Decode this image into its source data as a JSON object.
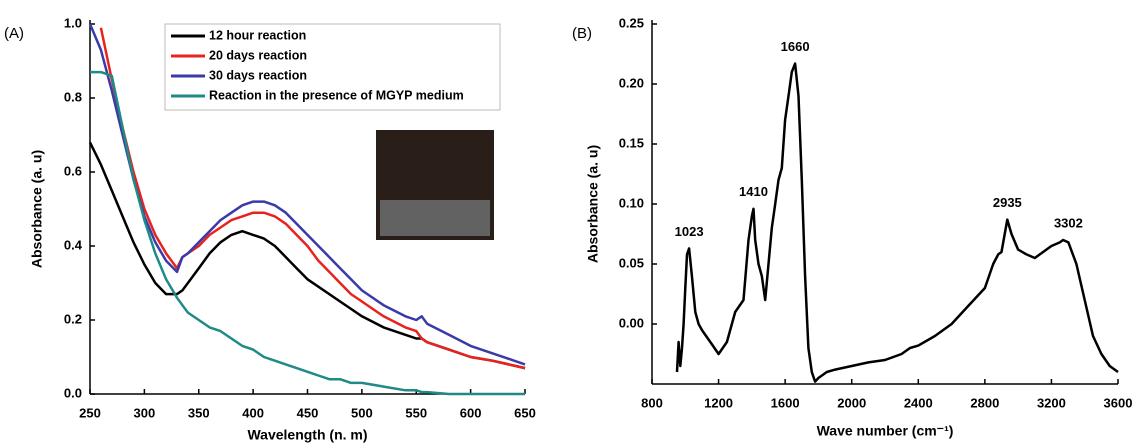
{
  "chart_data": [
    {
      "type": "line",
      "panel_label": "(A)",
      "x_label": "Wavelength (n. m)",
      "y_label": "Absorbance (a. u)",
      "xlim": [
        250,
        650
      ],
      "xticks": [
        250,
        300,
        350,
        400,
        450,
        500,
        550,
        600,
        650
      ],
      "ylim": [
        0,
        1
      ],
      "yticks": [
        {
          "value": 0,
          "label": "0.0"
        },
        0.2,
        0.4,
        0.6,
        0.8,
        {
          "value": 1,
          "label": "1.0"
        }
      ],
      "x": [
        250,
        260,
        270,
        280,
        290,
        300,
        310,
        320,
        330,
        335,
        340,
        350,
        360,
        370,
        380,
        390,
        400,
        410,
        420,
        430,
        440,
        450,
        460,
        470,
        480,
        490,
        500,
        520,
        540,
        550,
        555,
        560,
        580,
        600,
        620,
        650
      ],
      "series": [
        {
          "name": "12 hour reaction",
          "color": "#000000",
          "values": [
            0.68,
            0.62,
            0.55,
            0.48,
            0.41,
            0.35,
            0.3,
            0.27,
            0.27,
            0.28,
            0.3,
            0.34,
            0.38,
            0.41,
            0.43,
            0.44,
            0.43,
            0.42,
            0.4,
            0.37,
            0.34,
            0.31,
            0.29,
            0.27,
            0.25,
            0.23,
            0.21,
            0.18,
            0.16,
            0.15,
            0.15,
            0.14,
            0.12,
            0.1,
            0.09,
            0.07
          ]
        },
        {
          "name": "20 days reaction",
          "color": "#e8231f",
          "values": [
            null,
            0.99,
            0.85,
            0.72,
            0.6,
            0.5,
            0.43,
            0.38,
            0.34,
            0.37,
            0.38,
            0.4,
            0.43,
            0.45,
            0.47,
            0.48,
            0.49,
            0.49,
            0.48,
            0.46,
            0.43,
            0.4,
            0.36,
            0.33,
            0.3,
            0.27,
            0.25,
            0.21,
            0.18,
            0.17,
            0.15,
            0.14,
            0.12,
            0.1,
            0.09,
            0.07
          ]
        },
        {
          "name": "30 days reaction",
          "color": "#3a3aa8",
          "values": [
            1.0,
            0.93,
            0.82,
            0.7,
            0.58,
            0.48,
            0.41,
            0.36,
            0.33,
            0.37,
            0.38,
            0.41,
            0.44,
            0.47,
            0.49,
            0.51,
            0.52,
            0.52,
            0.51,
            0.49,
            0.46,
            0.43,
            0.4,
            0.37,
            0.34,
            0.31,
            0.28,
            0.24,
            0.21,
            0.2,
            0.21,
            0.19,
            0.16,
            0.13,
            0.11,
            0.08
          ]
        },
        {
          "name": "Reaction in the presence of MGYP medium",
          "color": "#1f8a86",
          "values": [
            0.87,
            0.87,
            0.86,
            0.72,
            0.58,
            0.47,
            0.38,
            0.31,
            0.26,
            0.24,
            0.22,
            0.2,
            0.18,
            0.17,
            0.15,
            0.13,
            0.12,
            0.1,
            0.09,
            0.08,
            0.07,
            0.06,
            0.05,
            0.04,
            0.04,
            0.03,
            0.03,
            0.02,
            0.01,
            0.01,
            0.005,
            0.005,
            0,
            0,
            0,
            0
          ]
        }
      ]
    },
    {
      "type": "line",
      "panel_label": "(B)",
      "x_label": "Wave number (cm⁻¹)",
      "y_label": "Absorbance (a. u)",
      "xlim": [
        800,
        3600
      ],
      "xticks": [
        800,
        1200,
        1600,
        2000,
        2400,
        2800,
        3200,
        3600
      ],
      "ylim": [
        -0.05,
        0.25
      ],
      "yticks": [
        {
          "value": 0,
          "label": "0.00"
        },
        0.05,
        {
          "value": 0.1,
          "label": "0.10"
        },
        0.15,
        {
          "value": 0.2,
          "label": "0.20"
        },
        0.25
      ],
      "color": "#000000",
      "x": [
        950,
        960,
        970,
        980,
        990,
        1000,
        1010,
        1023,
        1040,
        1060,
        1080,
        1100,
        1150,
        1200,
        1250,
        1300,
        1350,
        1380,
        1400,
        1410,
        1420,
        1440,
        1460,
        1480,
        1500,
        1520,
        1540,
        1560,
        1580,
        1600,
        1620,
        1640,
        1660,
        1680,
        1700,
        1720,
        1740,
        1760,
        1780,
        1800,
        1850,
        1900,
        2000,
        2100,
        2200,
        2300,
        2350,
        2400,
        2500,
        2600,
        2700,
        2800,
        2850,
        2880,
        2900,
        2935,
        2960,
        3000,
        3050,
        3100,
        3150,
        3200,
        3250,
        3270,
        3302,
        3350,
        3400,
        3450,
        3500,
        3550,
        3600
      ],
      "values": [
        -0.04,
        -0.015,
        -0.035,
        -0.02,
        0.0,
        0.03,
        0.058,
        0.063,
        0.04,
        0.01,
        0.0,
        -0.005,
        -0.015,
        -0.025,
        -0.015,
        0.01,
        0.02,
        0.07,
        0.09,
        0.096,
        0.07,
        0.05,
        0.04,
        0.02,
        0.05,
        0.08,
        0.1,
        0.12,
        0.13,
        0.17,
        0.19,
        0.21,
        0.217,
        0.19,
        0.12,
        0.04,
        -0.02,
        -0.04,
        -0.048,
        -0.045,
        -0.04,
        -0.038,
        -0.035,
        -0.032,
        -0.03,
        -0.025,
        -0.02,
        -0.018,
        -0.01,
        0.0,
        0.015,
        0.03,
        0.05,
        0.058,
        0.06,
        0.087,
        0.075,
        0.062,
        0.058,
        0.055,
        0.06,
        0.065,
        0.068,
        0.07,
        0.068,
        0.05,
        0.02,
        -0.01,
        -0.025,
        -0.035,
        -0.04
      ],
      "annotations": [
        {
          "text": "1023",
          "x": 1023,
          "y": 0.063
        },
        {
          "text": "1410",
          "x": 1410,
          "y": 0.096
        },
        {
          "text": "1660",
          "x": 1660,
          "y": 0.217
        },
        {
          "text": "2935",
          "x": 2935,
          "y": 0.087
        },
        {
          "text": "3302",
          "x": 3302,
          "y": 0.07
        }
      ]
    }
  ]
}
